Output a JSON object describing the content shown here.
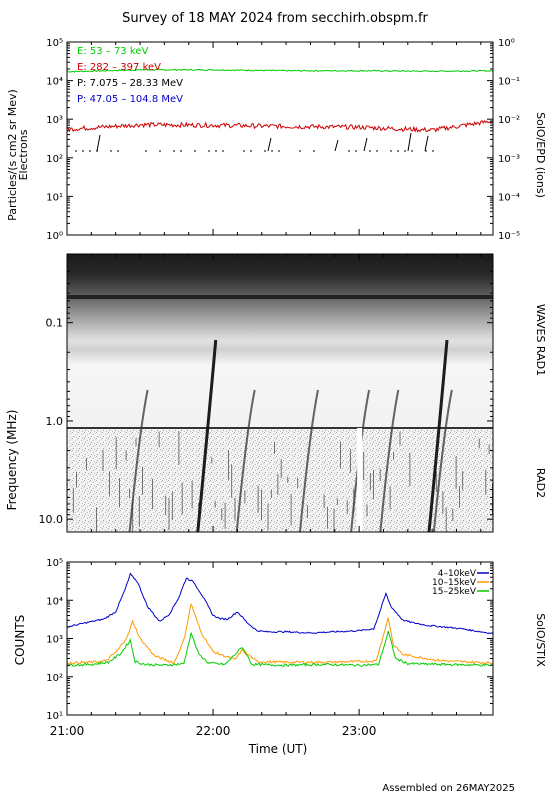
{
  "title": "Survey of 18 MAY 2024 from secchirh.obspm.fr",
  "footer": "Assembled on 26MAY2025",
  "chart_data": [
    {
      "type": "line",
      "panel": "SolO/EPD particles",
      "ylabel_left": "Particles/(s cm2 sr Mev)",
      "ylabel_left2": "Electrons",
      "ylabel_right": "SolO/EPD (ions)",
      "y_scale": "log",
      "ylim": [
        1,
        100000
      ],
      "ylim_right": [
        1e-05,
        1
      ],
      "left_ticks": [
        "10⁰",
        "10¹",
        "10²",
        "10³",
        "10⁴",
        "10⁵"
      ],
      "right_ticks": [
        "10⁻⁵",
        "10⁻⁴",
        "10⁻³",
        "10⁻²",
        "10⁻¹",
        "10⁰"
      ],
      "x_range": [
        "21:00",
        "23:55"
      ],
      "legend": [
        {
          "text": "E: 53 – 73 keV",
          "color": "#00cc00"
        },
        {
          "text": "E: 282 – 397 keV",
          "color": "#cc0000"
        },
        {
          "text": "P: 7.075 – 28.33 MeV",
          "color": "#000000"
        },
        {
          "text": "P: 47.05 – 104.8 MeV",
          "color": "#0000cc"
        }
      ],
      "series": [
        {
          "name": "E: 53 – 73 keV",
          "color": "#00cc00",
          "x": [
            "21:00",
            "21:30",
            "22:00",
            "22:30",
            "23:00",
            "23:30",
            "23:55"
          ],
          "values": [
            17000,
            19000,
            19000,
            18000,
            18000,
            17500,
            18000
          ]
        },
        {
          "name": "E: 282 – 397 keV",
          "color": "#cc0000",
          "x": [
            "21:00",
            "21:30",
            "22:00",
            "22:30",
            "23:00",
            "23:30",
            "23:55"
          ],
          "values": [
            550,
            720,
            700,
            650,
            620,
            520,
            900
          ]
        }
      ],
      "proton_flux_level": 150
    },
    {
      "type": "heatmap",
      "panel": "Radio spectrogram",
      "ylabel": "Frequency (MHz)",
      "y_scale": "log",
      "y_ticks": [
        "0.1",
        "1.0",
        "10.0"
      ],
      "ylim": [
        0.02,
        13.5
      ],
      "right_labels": [
        "WAVES RAD1",
        "RAD2"
      ],
      "type3_bursts_utc": [
        "21:29",
        "21:57",
        "22:13",
        "22:39",
        "23:00",
        "23:12",
        "23:32",
        "23:34"
      ],
      "data_gap_utc": "23:00"
    },
    {
      "type": "line",
      "panel": "SolO/STIX X-ray",
      "ylabel": "COUNTS",
      "ylabel_right": "SolO/STIX",
      "y_scale": "log",
      "ylim": [
        10,
        100000
      ],
      "y_ticks": [
        "10¹",
        "10²",
        "10³",
        "10⁴",
        "10⁵"
      ],
      "xlabel": "Time (UT)",
      "x_ticks": [
        "21:00",
        "22:00",
        "23:00"
      ],
      "series": [
        {
          "name": "4–10keV",
          "color": "#0000cc",
          "x": [
            "21:00",
            "21:08",
            "21:15",
            "21:20",
            "21:24",
            "21:26",
            "21:29",
            "21:33",
            "21:38",
            "21:42",
            "21:46",
            "21:49",
            "21:52",
            "21:56",
            "22:00",
            "22:03",
            "22:06",
            "22:10",
            "22:14",
            "22:18",
            "22:22",
            "22:30",
            "22:40",
            "22:50",
            "23:00",
            "23:06",
            "23:08",
            "23:11",
            "23:13",
            "23:15",
            "23:18",
            "23:22",
            "23:28",
            "23:35",
            "23:42",
            "23:50",
            "23:55"
          ],
          "values": [
            2000,
            2600,
            3200,
            5000,
            20000,
            48000,
            30000,
            7000,
            2800,
            4300,
            12000,
            38000,
            30000,
            12000,
            4000,
            3300,
            3200,
            5000,
            2600,
            1600,
            1500,
            1500,
            1400,
            1500,
            1600,
            1800,
            4000,
            15000,
            7000,
            5000,
            3000,
            2600,
            2200,
            2000,
            1800,
            1500,
            1350
          ]
        },
        {
          "name": "10–15keV",
          "color": "#ff9900",
          "x": [
            "21:00",
            "21:10",
            "21:16",
            "21:21",
            "21:25",
            "21:27",
            "21:30",
            "21:36",
            "21:44",
            "21:48",
            "21:51",
            "21:55",
            "22:00",
            "22:09",
            "22:12",
            "22:18",
            "22:30",
            "22:45",
            "23:00",
            "23:07",
            "23:12",
            "23:14",
            "23:18",
            "23:25",
            "23:32",
            "23:40",
            "23:55"
          ],
          "values": [
            230,
            240,
            260,
            500,
            1200,
            2800,
            1000,
            350,
            230,
            900,
            8000,
            1500,
            450,
            280,
            500,
            250,
            240,
            240,
            250,
            260,
            3500,
            700,
            380,
            320,
            270,
            250,
            230
          ]
        },
        {
          "name": "15–25keV",
          "color": "#00cc00",
          "x": [
            "21:00",
            "21:10",
            "21:17",
            "21:22",
            "21:26",
            "21:28",
            "21:32",
            "21:40",
            "21:48",
            "21:51",
            "21:54",
            "21:58",
            "22:05",
            "22:12",
            "22:16",
            "22:30",
            "22:45",
            "23:00",
            "23:08",
            "23:12",
            "23:15",
            "23:20",
            "23:35",
            "23:55"
          ],
          "values": [
            200,
            210,
            240,
            400,
            900,
            250,
            210,
            200,
            220,
            1400,
            400,
            230,
            210,
            600,
            210,
            200,
            210,
            200,
            210,
            1500,
            300,
            220,
            210,
            200
          ]
        }
      ]
    }
  ]
}
